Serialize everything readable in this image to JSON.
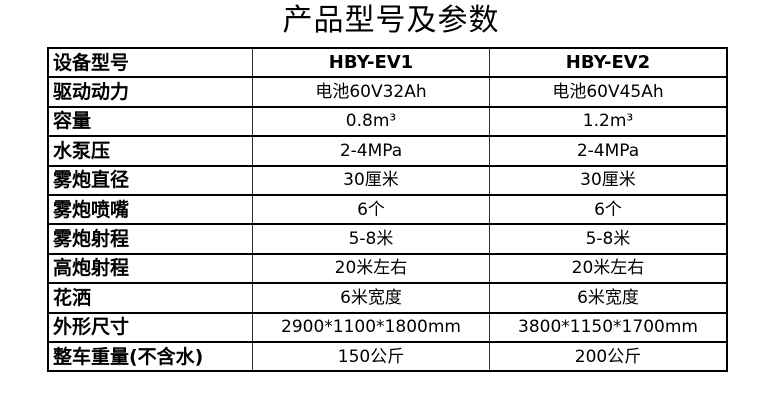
{
  "title": "产品型号及参数",
  "rows": [
    {
      "label": "设备型号",
      "ev1": "HBY-EV1",
      "ev2": "HBY-EV2"
    },
    {
      "label": "驱动动力",
      "ev1": "电池60V32Ah",
      "ev2": "电池60V45Ah"
    },
    {
      "label": "容量",
      "ev1": "0.8m³",
      "ev2": "1.2m³"
    },
    {
      "label": "水泵压",
      "ev1": "2-4MPa",
      "ev2": "2-4MPa"
    },
    {
      "label": "雾炮直径",
      "ev1": "30厘米",
      "ev2": "30厘米"
    },
    {
      "label": "雾炮喷嘴",
      "ev1": "6个",
      "ev2": "6个"
    },
    {
      "label": "雾炮射程",
      "ev1": "5-8米",
      "ev2": "5-8米"
    },
    {
      "label": "高炮射程",
      "ev1": "20米左右",
      "ev2": "20米左右"
    },
    {
      "label": "花洒",
      "ev1": "6米宽度",
      "ev2": "6米宽度"
    },
    {
      "label": "外形尺寸",
      "ev1": "2900*1100*1800mm",
      "ev2": "3800*1150*1700mm"
    },
    {
      "label": "整车重量(不含水)",
      "ev1": "150公斤",
      "ev2": "200公斤"
    }
  ]
}
